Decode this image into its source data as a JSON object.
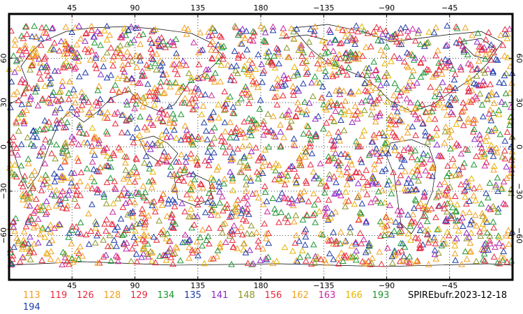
{
  "map": {
    "title": "",
    "dataset_label": "SPIREbufr.2023-12-18",
    "marker_symbol": "triangle-outline",
    "projection": "cylindrical-equidistant",
    "lon_range": [
      0,
      360
    ],
    "lat_range": [
      -90,
      90
    ],
    "grid": "dotted",
    "top_ticks": [
      "45",
      "90",
      "135",
      "180",
      "−135",
      "−90",
      "−45"
    ],
    "bottom_ticks": [
      "45",
      "90",
      "135",
      "180",
      "−135",
      "−90",
      "−45"
    ],
    "left_ticks": [
      "60",
      "30",
      "0",
      "−30",
      "−60"
    ],
    "right_ticks": [
      "60",
      "30",
      "0",
      "−30",
      "−60"
    ]
  },
  "legend": {
    "items": [
      {
        "label": "113",
        "color": "#f0a020"
      },
      {
        "label": "119",
        "color": "#e8283c"
      },
      {
        "label": "126",
        "color": "#e8283c"
      },
      {
        "label": "128",
        "color": "#f0a020"
      },
      {
        "label": "129",
        "color": "#e8283c"
      },
      {
        "label": "134",
        "color": "#1e9632"
      },
      {
        "label": "135",
        "color": "#1e3caa"
      },
      {
        "label": "141",
        "color": "#8c28c8"
      },
      {
        "label": "148",
        "color": "#8c9628"
      },
      {
        "label": "156",
        "color": "#e8283c"
      },
      {
        "label": "162",
        "color": "#f0a020"
      },
      {
        "label": "163",
        "color": "#c828a0"
      },
      {
        "label": "166",
        "color": "#e6b400"
      },
      {
        "label": "193",
        "color": "#1e9632"
      },
      {
        "label": "194",
        "color": "#1e3caa"
      }
    ]
  }
}
